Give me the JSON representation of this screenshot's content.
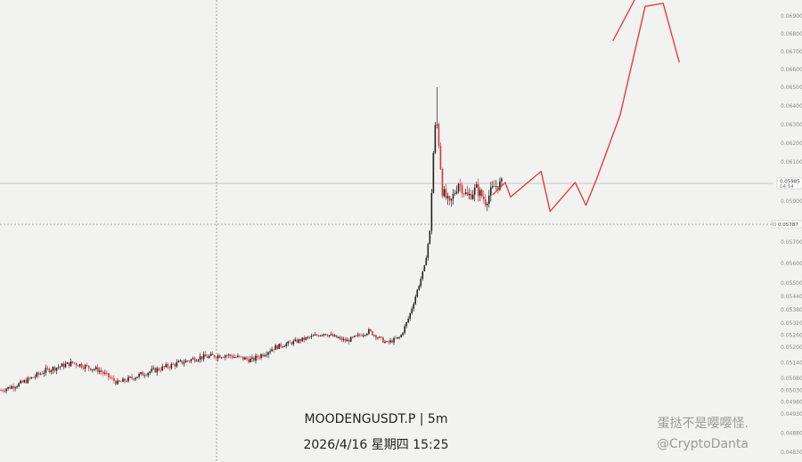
{
  "chart_data": {
    "type": "candlestick",
    "symbol_line": "MOODENGUSDT.P | 5m",
    "time_line": "2026/4/16 星期四 15:25",
    "y_ticks": [
      "0.06900",
      "0.06800",
      "0.06700",
      "0.06600",
      "0.06500",
      "0.06400",
      "0.06300",
      "0.06200",
      "0.06100",
      "0.05900",
      "0.05700",
      "0.05600",
      "0.05500",
      "0.05440",
      "0.05380",
      "0.05320",
      "0.05260",
      "0.05200",
      "0.05140",
      "0.05080",
      "0.05030",
      "0.04980",
      "0.04930",
      "0.04880",
      "0.04830"
    ],
    "last_price": "0.05985",
    "countdown": "04:54",
    "crosshair_price": "0.05787",
    "ylim": [
      0.0483,
      0.0695
    ],
    "ohlc_anchors": [
      {
        "bar": 0,
        "close": 0.0503
      },
      {
        "bar": 20,
        "close": 0.05055
      },
      {
        "bar": 50,
        "close": 0.0511
      },
      {
        "bar": 80,
        "close": 0.0514
      },
      {
        "bar": 110,
        "close": 0.0511
      },
      {
        "bar": 130,
        "close": 0.0506
      },
      {
        "bar": 160,
        "close": 0.051
      },
      {
        "bar": 190,
        "close": 0.0513
      },
      {
        "bar": 220,
        "close": 0.0516
      },
      {
        "bar": 250,
        "close": 0.0517
      },
      {
        "bar": 280,
        "close": 0.0515
      },
      {
        "bar": 305,
        "close": 0.052
      },
      {
        "bar": 330,
        "close": 0.0523
      },
      {
        "bar": 360,
        "close": 0.0527
      },
      {
        "bar": 385,
        "close": 0.0523
      },
      {
        "bar": 410,
        "close": 0.0528
      },
      {
        "bar": 430,
        "close": 0.0522
      },
      {
        "bar": 445,
        "close": 0.0525
      },
      {
        "bar": 455,
        "close": 0.0535
      },
      {
        "bar": 465,
        "close": 0.0548
      },
      {
        "bar": 472,
        "close": 0.0558
      },
      {
        "bar": 478,
        "close": 0.0575
      },
      {
        "bar": 482,
        "close": 0.0615
      },
      {
        "bar": 485,
        "close": 0.0635
      },
      {
        "bar": 488,
        "close": 0.062
      },
      {
        "bar": 492,
        "close": 0.0595
      },
      {
        "bar": 500,
        "close": 0.0588
      },
      {
        "bar": 510,
        "close": 0.0599
      },
      {
        "bar": 520,
        "close": 0.0592
      },
      {
        "bar": 530,
        "close": 0.0596
      },
      {
        "bar": 540,
        "close": 0.059
      },
      {
        "bar": 550,
        "close": 0.0597
      },
      {
        "bar": 558,
        "close": 0.05985
      }
    ],
    "spike_high": 0.065,
    "projection_path": [
      {
        "bar": 548,
        "price": 0.0593
      },
      {
        "bar": 562,
        "price": 0.0599
      },
      {
        "bar": 568,
        "price": 0.0592
      },
      {
        "bar": 602,
        "price": 0.0605
      },
      {
        "bar": 612,
        "price": 0.0585
      },
      {
        "bar": 640,
        "price": 0.0599
      },
      {
        "bar": 652,
        "price": 0.0588
      },
      {
        "bar": 664,
        "price": 0.0601
      },
      {
        "bar": 690,
        "price": 0.0635
      },
      {
        "bar": 718,
        "price": 0.0693
      },
      {
        "bar": 738,
        "price": 0.0694
      },
      {
        "bar": 756,
        "price": 0.0664
      }
    ],
    "projection_start": {
      "bar": 682,
      "price": 0.0676
    },
    "colors": {
      "up": "#222222",
      "down": "#d8343c",
      "projection": "#e8303a",
      "bg": "#f2f2f0"
    }
  },
  "watermark": {
    "name": "蛋挞不是嘤嘤怪.",
    "handle": "@CryptoDanta"
  }
}
